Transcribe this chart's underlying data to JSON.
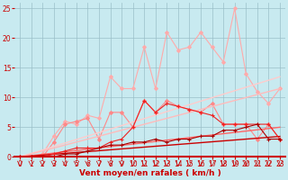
{
  "x": [
    0,
    1,
    2,
    3,
    4,
    5,
    6,
    7,
    8,
    9,
    10,
    11,
    12,
    13,
    14,
    15,
    16,
    17,
    18,
    19,
    20,
    21,
    22,
    23
  ],
  "background_color": "#c8eaf0",
  "grid_color": "#9bbfc8",
  "xlabel": "Vent moyen/en rafales ( km/h )",
  "xlabel_color": "#cc0000",
  "tick_color": "#cc0000",
  "series": [
    {
      "name": "light_pink_zigzag",
      "color": "#ffaaaa",
      "lw": 0.8,
      "marker": "D",
      "ms": 2.0,
      "data": [
        0.0,
        0.0,
        0.5,
        3.5,
        6.0,
        5.5,
        7.0,
        6.5,
        13.5,
        11.5,
        11.5,
        18.5,
        11.5,
        21.0,
        18.0,
        18.5,
        21.0,
        18.5,
        16.0,
        25.0,
        14.0,
        11.0,
        9.0,
        11.5
      ]
    },
    {
      "name": "medium_pink_zigzag",
      "color": "#ff8888",
      "lw": 0.8,
      "marker": "D",
      "ms": 2.0,
      "data": [
        0.0,
        0.0,
        0.0,
        2.5,
        5.5,
        6.0,
        6.5,
        3.0,
        7.5,
        7.5,
        5.0,
        9.5,
        7.5,
        9.5,
        8.5,
        8.0,
        7.5,
        9.0,
        5.5,
        5.5,
        5.5,
        3.0,
        5.5,
        3.0
      ]
    },
    {
      "name": "diagonal1_lightest",
      "color": "#ffcccc",
      "lw": 1.0,
      "marker": null,
      "data": [
        0.0,
        0.59,
        1.17,
        1.76,
        2.35,
        2.93,
        3.52,
        4.11,
        4.69,
        5.28,
        5.87,
        6.45,
        7.04,
        7.63,
        8.21,
        8.8,
        9.39,
        9.97,
        10.56,
        11.15,
        11.73,
        12.32,
        12.91,
        13.5
      ]
    },
    {
      "name": "diagonal2_light",
      "color": "#ffbbbb",
      "lw": 1.0,
      "marker": null,
      "data": [
        0.0,
        0.5,
        1.0,
        1.5,
        2.0,
        2.5,
        3.0,
        3.5,
        4.0,
        4.5,
        5.0,
        5.5,
        6.0,
        6.5,
        7.0,
        7.5,
        8.0,
        8.5,
        9.0,
        9.5,
        10.0,
        10.5,
        11.0,
        11.5
      ]
    },
    {
      "name": "diagonal3_medium",
      "color": "#ff6666",
      "lw": 1.0,
      "marker": null,
      "data": [
        0.0,
        0.22,
        0.43,
        0.65,
        0.87,
        1.09,
        1.3,
        1.52,
        1.74,
        1.96,
        2.17,
        2.39,
        2.61,
        2.83,
        3.04,
        3.26,
        3.48,
        3.7,
        3.91,
        4.13,
        4.35,
        4.57,
        4.78,
        5.0
      ]
    },
    {
      "name": "diagonal4_dark",
      "color": "#cc0000",
      "lw": 1.0,
      "marker": null,
      "data": [
        0.0,
        0.15,
        0.3,
        0.45,
        0.6,
        0.75,
        0.9,
        1.05,
        1.2,
        1.35,
        1.5,
        1.65,
        1.8,
        1.95,
        2.1,
        2.25,
        2.4,
        2.55,
        2.7,
        2.85,
        3.0,
        3.15,
        3.3,
        3.45
      ]
    },
    {
      "name": "red_zigzag_cross",
      "color": "#ee2222",
      "lw": 0.8,
      "marker": "+",
      "ms": 3.0,
      "data": [
        0.0,
        0.0,
        0.0,
        0.5,
        1.0,
        1.5,
        1.5,
        1.5,
        2.5,
        3.0,
        5.0,
        9.5,
        7.5,
        9.0,
        8.5,
        8.0,
        7.5,
        7.0,
        5.5,
        5.5,
        5.5,
        5.5,
        5.5,
        3.0
      ]
    },
    {
      "name": "dark_red_zigzag_cross",
      "color": "#aa0000",
      "lw": 0.8,
      "marker": "+",
      "ms": 3.0,
      "data": [
        0.0,
        0.0,
        0.0,
        0.0,
        0.5,
        0.5,
        1.0,
        1.5,
        2.0,
        2.0,
        2.5,
        2.5,
        3.0,
        2.5,
        3.0,
        3.0,
        3.5,
        3.5,
        4.5,
        4.5,
        5.0,
        5.5,
        3.0,
        3.0
      ]
    }
  ],
  "ylim": [
    0,
    26
  ],
  "xlim": [
    -0.5,
    23.5
  ],
  "yticks": [
    0,
    5,
    10,
    15,
    20,
    25
  ],
  "xticks": [
    0,
    1,
    2,
    3,
    4,
    5,
    6,
    7,
    8,
    9,
    10,
    11,
    12,
    13,
    14,
    15,
    16,
    17,
    18,
    19,
    20,
    21,
    22,
    23
  ],
  "tick_fontsize": 5.5,
  "label_fontsize": 6.5,
  "bottom_line_color": "#cc0000",
  "bottom_line_width": 1.5
}
